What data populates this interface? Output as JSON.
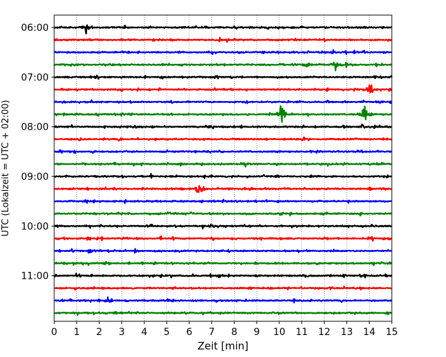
{
  "chart_data": {
    "type": "line",
    "title": "",
    "xlabel": "Zeit  [min]",
    "ylabel": "UTC (Lokalzeit = UTC + 02:00)",
    "xlim": [
      0,
      15
    ],
    "xticks": [
      "0",
      "1",
      "2",
      "3",
      "4",
      "5",
      "6",
      "7",
      "8",
      "9",
      "10",
      "11",
      "12",
      "13",
      "14",
      "15"
    ],
    "yticks": [
      "06:00",
      "07:00",
      "08:00",
      "09:00",
      "10:00",
      "11:00"
    ],
    "grid": "vertical dotted",
    "trace_interval_minutes": 15,
    "first_trace": "06:00",
    "colors": [
      "#000000",
      "#ff0000",
      "#0000ff",
      "#008000"
    ],
    "series": [
      {
        "start": "06:00",
        "color": "#000000",
        "events": [
          [
            1.4,
            1.0
          ]
        ]
      },
      {
        "start": "06:15",
        "color": "#ff0000",
        "events": []
      },
      {
        "start": "06:30",
        "color": "#0000ff",
        "events": [
          [
            12.4,
            0.45
          ]
        ]
      },
      {
        "start": "06:45",
        "color": "#008000",
        "events": [
          [
            0.4,
            0.35
          ],
          [
            11.3,
            0.5
          ],
          [
            12.5,
            0.85
          ],
          [
            13.0,
            0.55
          ]
        ]
      },
      {
        "start": "07:00",
        "color": "#000000",
        "events": []
      },
      {
        "start": "07:15",
        "color": "#ff0000",
        "events": [
          [
            13.9,
            0.55
          ],
          [
            14.1,
            1.2
          ]
        ]
      },
      {
        "start": "07:30",
        "color": "#0000ff",
        "events": []
      },
      {
        "start": "07:45",
        "color": "#008000",
        "events": [
          [
            10.1,
            2.0
          ],
          [
            13.8,
            1.4
          ]
        ]
      },
      {
        "start": "08:00",
        "color": "#000000",
        "events": [
          [
            13.7,
            0.45
          ]
        ]
      },
      {
        "start": "08:15",
        "color": "#ff0000",
        "events": []
      },
      {
        "start": "08:30",
        "color": "#0000ff",
        "events": []
      },
      {
        "start": "08:45",
        "color": "#008000",
        "events": []
      },
      {
        "start": "09:00",
        "color": "#000000",
        "events": [
          [
            4.3,
            0.4
          ]
        ]
      },
      {
        "start": "09:15",
        "color": "#ff0000",
        "events": [
          [
            6.45,
            1.6
          ]
        ]
      },
      {
        "start": "09:30",
        "color": "#0000ff",
        "events": []
      },
      {
        "start": "09:45",
        "color": "#008000",
        "events": [
          [
            13.6,
            0.35
          ]
        ]
      },
      {
        "start": "10:00",
        "color": "#000000",
        "events": [
          [
            7.0,
            0.45
          ]
        ]
      },
      {
        "start": "10:15",
        "color": "#ff0000",
        "events": [
          [
            1.5,
            0.35
          ],
          [
            14.1,
            0.5
          ]
        ]
      },
      {
        "start": "10:30",
        "color": "#0000ff",
        "events": [
          [
            1.6,
            0.4
          ]
        ]
      },
      {
        "start": "10:45",
        "color": "#008000",
        "events": [
          [
            0.5,
            0.3
          ],
          [
            14.2,
            0.35
          ]
        ]
      },
      {
        "start": "11:00",
        "color": "#000000",
        "events": [
          [
            7.3,
            0.45
          ]
        ]
      },
      {
        "start": "11:15",
        "color": "#ff0000",
        "events": []
      },
      {
        "start": "11:30",
        "color": "#0000ff",
        "events": [
          [
            2.4,
            0.55
          ]
        ]
      },
      {
        "start": "11:45",
        "color": "#008000",
        "events": []
      }
    ]
  }
}
